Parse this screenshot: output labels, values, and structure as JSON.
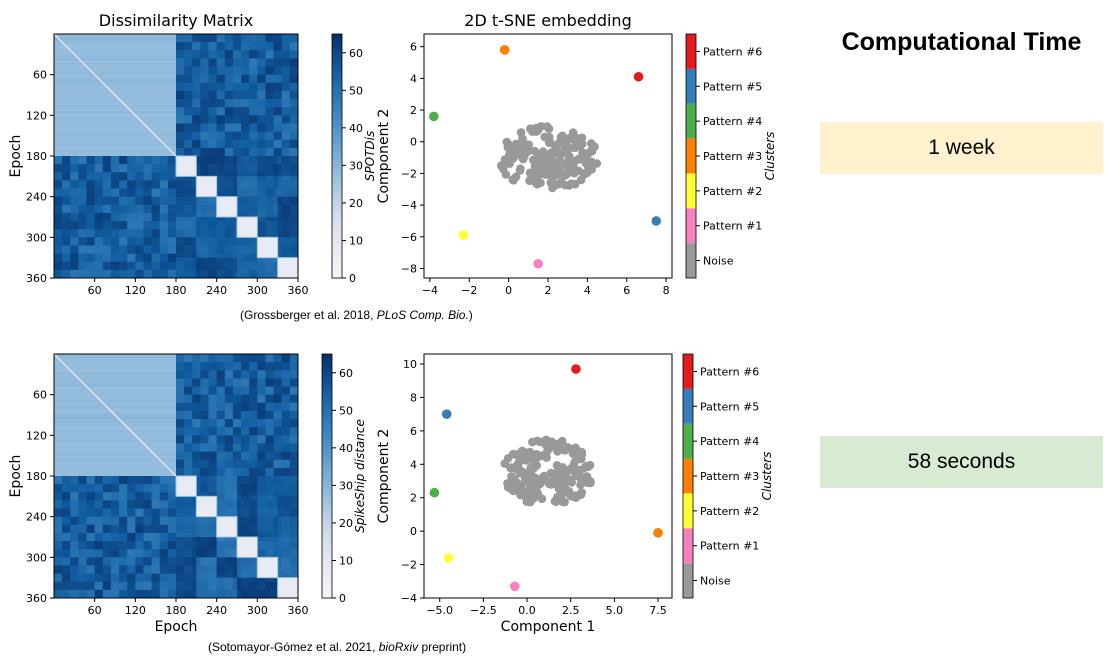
{
  "computational_time": {
    "title": "Computational Time",
    "rows": [
      {
        "label": "1 week",
        "color": "#fff2cc"
      },
      {
        "label": "58 seconds",
        "color": "#d9ead3"
      }
    ]
  },
  "citations": [
    {
      "pre": "(Grossberger et al. 2018, ",
      "journal": "PLoS Comp. Bio.",
      "post": ")"
    },
    {
      "pre": "(Sotomayor-Gómez et al. 2021, ",
      "journal": "bioRxiv",
      "post": " preprint)"
    }
  ],
  "chart_data": [
    {
      "type": "heatmap",
      "title": "Dissimilarity Matrix",
      "xlabel": "",
      "ylabel": "Epoch",
      "x_ticks": [
        60,
        120,
        180,
        240,
        300,
        360
      ],
      "y_ticks": [
        60,
        120,
        180,
        240,
        300,
        360
      ],
      "n": 360,
      "colorbar": {
        "label": "SPOTDis",
        "range": [
          0,
          65
        ],
        "ticks": [
          0,
          10,
          20,
          30,
          40,
          50,
          60
        ]
      },
      "blocks": {
        "noise_block": [
          0,
          180
        ],
        "pattern_blocks": [
          [
            180,
            210
          ],
          [
            210,
            240
          ],
          [
            240,
            270
          ],
          [
            270,
            300
          ],
          [
            300,
            330
          ],
          [
            330,
            360
          ]
        ],
        "noise_value": 28,
        "within_pattern_value": 7,
        "between_value": 55
      }
    },
    {
      "type": "scatter",
      "title": "2D t-SNE embedding",
      "xlabel": "",
      "ylabel": "Component 2",
      "xlim": [
        -4.3,
        8.3
      ],
      "ylim": [
        -8.6,
        6.8
      ],
      "x_ticks": [
        -4,
        -2,
        0,
        2,
        4,
        6,
        8
      ],
      "y_ticks": [
        -8,
        -6,
        -4,
        -2,
        0,
        2,
        4,
        6
      ],
      "x_tick_labels": [
        "−4",
        "−2",
        "0",
        "2",
        "4",
        "6",
        "8"
      ],
      "y_tick_labels": [
        "−8",
        "−6",
        "−4",
        "−2",
        "0",
        "2",
        "4",
        "6"
      ],
      "noise_cloud": {
        "center": [
          2.0,
          -1.0
        ],
        "radius_x": 2.6,
        "radius_y": 2.0,
        "count": 180,
        "color": "#999999"
      },
      "points": [
        {
          "name": "Pattern #6",
          "x": 6.6,
          "y": 4.1,
          "color": "#e41a1c"
        },
        {
          "name": "Pattern #5",
          "x": 7.5,
          "y": -5.0,
          "color": "#377eb8"
        },
        {
          "name": "Pattern #4",
          "x": -3.8,
          "y": 1.6,
          "color": "#4daf4a"
        },
        {
          "name": "Pattern #3",
          "x": -0.2,
          "y": 5.8,
          "color": "#ff7f00"
        },
        {
          "name": "Pattern #2",
          "x": -2.3,
          "y": -5.9,
          "color": "#ffff33"
        },
        {
          "name": "Pattern #1",
          "x": 1.5,
          "y": -7.7,
          "color": "#f781bf"
        }
      ],
      "legend": {
        "title": "Clusters",
        "entries": [
          "Noise",
          "Pattern #1",
          "Pattern #2",
          "Pattern #3",
          "Pattern #4",
          "Pattern #5",
          "Pattern #6"
        ],
        "colors": [
          "#999999",
          "#f781bf",
          "#ffff33",
          "#ff7f00",
          "#4daf4a",
          "#377eb8",
          "#e41a1c"
        ]
      }
    },
    {
      "type": "heatmap",
      "title": "",
      "xlabel": "Epoch",
      "ylabel": "Epoch",
      "x_ticks": [
        60,
        120,
        180,
        240,
        300,
        360
      ],
      "y_ticks": [
        60,
        120,
        180,
        240,
        300,
        360
      ],
      "n": 360,
      "colorbar": {
        "label": "SpikeShip distance",
        "range": [
          0,
          65
        ],
        "ticks": [
          0,
          10,
          20,
          30,
          40,
          50,
          60
        ]
      },
      "blocks": {
        "noise_block": [
          0,
          180
        ],
        "pattern_blocks": [
          [
            180,
            210
          ],
          [
            210,
            240
          ],
          [
            240,
            270
          ],
          [
            270,
            300
          ],
          [
            300,
            330
          ],
          [
            330,
            360
          ]
        ],
        "noise_value": 28,
        "within_pattern_value": 7,
        "between_value": 55
      }
    },
    {
      "type": "scatter",
      "title": "",
      "xlabel": "Component 1",
      "ylabel": "Component 2",
      "xlim": [
        -5.9,
        8.3
      ],
      "ylim": [
        -4.0,
        10.6
      ],
      "x_ticks": [
        -5.0,
        -2.5,
        0.0,
        2.5,
        5.0,
        7.5
      ],
      "y_ticks": [
        -4,
        -2,
        0,
        2,
        4,
        6,
        8,
        10
      ],
      "x_tick_labels": [
        "−5.0",
        "−2.5",
        "0.0",
        "2.5",
        "5.0",
        "7.5"
      ],
      "y_tick_labels": [
        "−4",
        "−2",
        "0",
        "2",
        "4",
        "6",
        "8",
        "10"
      ],
      "noise_cloud": {
        "center": [
          1.2,
          3.5
        ],
        "radius_x": 2.6,
        "radius_y": 2.0,
        "count": 180,
        "color": "#999999"
      },
      "points": [
        {
          "name": "Pattern #6",
          "x": 2.8,
          "y": 9.7,
          "color": "#e41a1c"
        },
        {
          "name": "Pattern #5",
          "x": -4.6,
          "y": 7.0,
          "color": "#377eb8"
        },
        {
          "name": "Pattern #4",
          "x": -5.3,
          "y": 2.3,
          "color": "#4daf4a"
        },
        {
          "name": "Pattern #3",
          "x": 7.5,
          "y": -0.1,
          "color": "#ff7f00"
        },
        {
          "name": "Pattern #2",
          "x": -4.5,
          "y": -1.6,
          "color": "#ffff33"
        },
        {
          "name": "Pattern #1",
          "x": -0.7,
          "y": -3.3,
          "color": "#f781bf"
        }
      ],
      "legend": {
        "title": "Clusters",
        "entries": [
          "Noise",
          "Pattern #1",
          "Pattern #2",
          "Pattern #3",
          "Pattern #4",
          "Pattern #5",
          "Pattern #6"
        ],
        "colors": [
          "#999999",
          "#f781bf",
          "#ffff33",
          "#ff7f00",
          "#4daf4a",
          "#377eb8",
          "#e41a1c"
        ]
      }
    }
  ]
}
